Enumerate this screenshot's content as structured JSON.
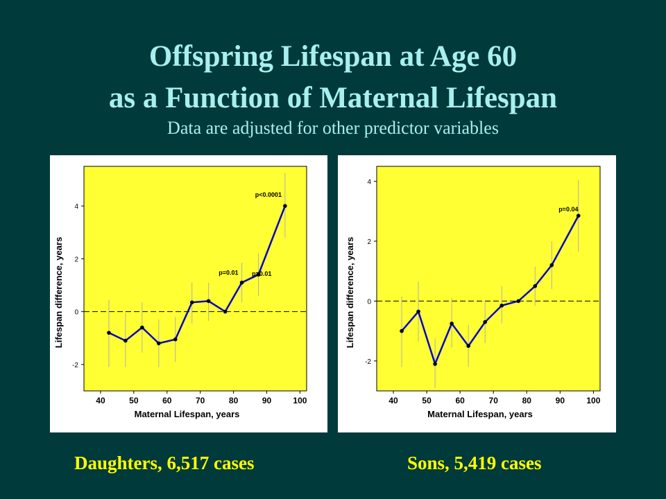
{
  "slide": {
    "title_line1": "Offspring  Lifespan at Age 60",
    "title_line2": "as  a  Function  of  Maternal  Lifespan",
    "subtitle": "Data are adjusted for other predictor variables",
    "caption_left": "Daughters, 6,517 cases",
    "caption_right": "Sons, 5,419 cases"
  },
  "colors": {
    "background": "#003a3a",
    "title": "#a8f0f0",
    "caption": "#ffff00",
    "plot_area": "#ffff33",
    "line": "#0000cc",
    "error_bar": "#b0b0b0",
    "reference_line": "#000000"
  },
  "chart_data": [
    {
      "type": "line",
      "panel": "daughters",
      "xlabel": "Maternal Lifespan, years",
      "ylabel": "Lifespan difference, years",
      "xlim": [
        35,
        102
      ],
      "ylim": [
        -3,
        5.5
      ],
      "xticks": [
        40,
        50,
        60,
        70,
        80,
        90,
        100
      ],
      "yticks": [
        -2,
        0,
        2,
        4
      ],
      "reference_line_y": 0,
      "grid": false,
      "series": [
        {
          "x": [
            42.5,
            47.5,
            52.5,
            57.5,
            62.5,
            67.5,
            72.5,
            77.5,
            82.5,
            87.5,
            95.5
          ],
          "y": [
            -0.8,
            -1.1,
            -0.6,
            -1.2,
            -1.05,
            0.35,
            0.4,
            0.0,
            1.1,
            1.4,
            4.0
          ],
          "err_low": [
            -2.1,
            -2.1,
            -1.55,
            -2.1,
            -1.9,
            -0.45,
            -0.35,
            -0.05,
            0.35,
            0.6,
            2.8
          ],
          "err_high": [
            0.45,
            -0.05,
            0.35,
            -0.3,
            -0.2,
            1.1,
            1.1,
            0.05,
            1.85,
            2.2,
            5.25
          ]
        }
      ],
      "annotations": [
        {
          "text": "p<0.0001",
          "x": 90.5,
          "y": 4.35
        },
        {
          "text": "p=0.01",
          "x": 78.5,
          "y": 1.4
        },
        {
          "text": "p=0.01",
          "x": 88.5,
          "y": 1.35
        }
      ]
    },
    {
      "type": "line",
      "panel": "sons",
      "xlabel": "Maternal Lifespan, years",
      "ylabel": "Lifespan difference, years",
      "xlim": [
        35,
        102
      ],
      "ylim": [
        -3,
        4.5
      ],
      "xticks": [
        40,
        50,
        60,
        70,
        80,
        90,
        100
      ],
      "yticks": [
        -2,
        0,
        2,
        4
      ],
      "reference_line_y": 0,
      "grid": false,
      "series": [
        {
          "x": [
            42.5,
            47.5,
            52.5,
            57.5,
            62.5,
            67.5,
            72.5,
            77.5,
            82.5,
            87.5,
            95.5
          ],
          "y": [
            -1.0,
            -0.35,
            -2.1,
            -0.75,
            -1.5,
            -0.7,
            -0.15,
            0.0,
            0.5,
            1.2,
            2.85
          ],
          "err_low": [
            -2.2,
            -1.35,
            -2.9,
            -1.55,
            -2.2,
            -1.4,
            -0.75,
            -0.05,
            -0.15,
            0.4,
            1.65
          ],
          "err_high": [
            0.15,
            0.65,
            -1.25,
            0.1,
            -0.8,
            0.0,
            0.5,
            0.05,
            1.15,
            2.0,
            4.05
          ]
        }
      ],
      "annotations": [
        {
          "text": "p=0.04",
          "x": 92.5,
          "y": 3.0
        }
      ]
    }
  ]
}
